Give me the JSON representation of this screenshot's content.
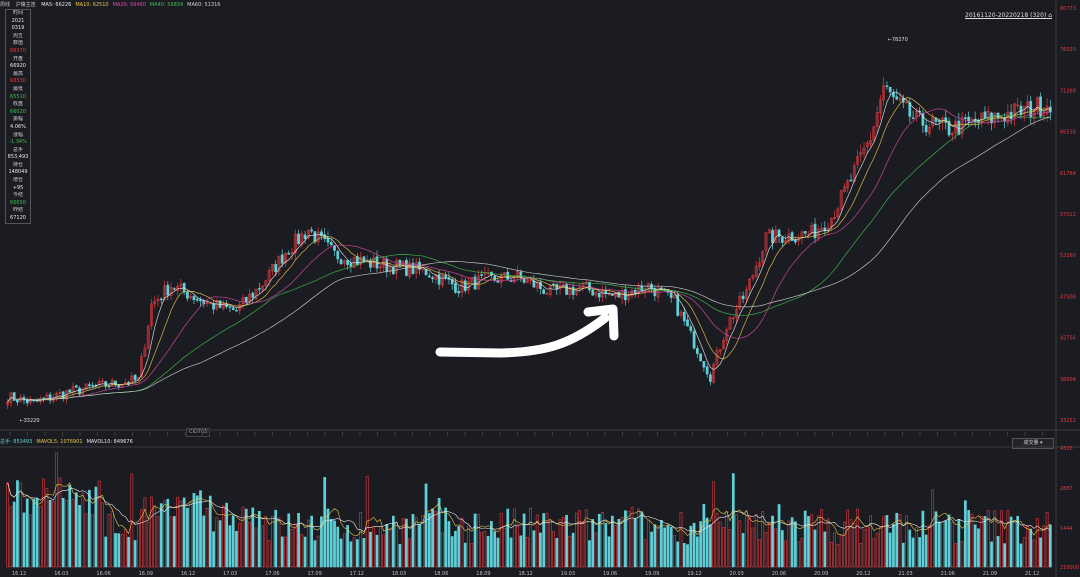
{
  "header": {
    "period": "周线",
    "symbol": "沪镍主连",
    "ma": [
      {
        "label": "MA5:",
        "value": "66226"
      },
      {
        "label": "MA10:",
        "value": "62510"
      },
      {
        "label": "MA20:",
        "value": "59480"
      },
      {
        "label": "MA40:",
        "value": "56834"
      },
      {
        "label": "MA60:",
        "value": "51316"
      }
    ],
    "range": "20161120-20220218 (320) ⌂"
  },
  "info_panel": [
    {
      "text": "时间",
      "tone": "lbl"
    },
    {
      "text": "2021",
      "tone": "white"
    },
    {
      "text": "0319",
      "tone": "white"
    },
    {
      "text": "周五",
      "tone": "lbl"
    },
    {
      "text": "数值",
      "tone": "lbl"
    },
    {
      "text": "66370",
      "tone": "red"
    },
    {
      "text": "开盘",
      "tone": "lbl"
    },
    {
      "text": "66920",
      "tone": "white"
    },
    {
      "text": "最高",
      "tone": "lbl"
    },
    {
      "text": "68330",
      "tone": "red"
    },
    {
      "text": "最低",
      "tone": "lbl"
    },
    {
      "text": "65510",
      "tone": "green"
    },
    {
      "text": "收盘",
      "tone": "lbl"
    },
    {
      "text": "66020",
      "tone": "green"
    },
    {
      "text": "振幅",
      "tone": "lbl"
    },
    {
      "text": "4.06%",
      "tone": "white"
    },
    {
      "text": "涨幅",
      "tone": "lbl"
    },
    {
      "text": "-1.34%",
      "tone": "green"
    },
    {
      "text": "总手",
      "tone": "lbl"
    },
    {
      "text": "853,493",
      "tone": "white"
    },
    {
      "text": "持仓",
      "tone": "lbl"
    },
    {
      "text": "148049",
      "tone": "white"
    },
    {
      "text": "增仓",
      "tone": "lbl"
    },
    {
      "text": "+95",
      "tone": "white"
    },
    {
      "text": "今结",
      "tone": "lbl"
    },
    {
      "text": "66650",
      "tone": "green"
    },
    {
      "text": "昨结",
      "tone": "lbl"
    },
    {
      "text": "67120",
      "tone": "white"
    }
  ],
  "cid_label": "CID703",
  "volume_header": [
    {
      "text": "总手: 853493",
      "cls": "vtot"
    },
    {
      "text": "MAVOL5: 1076901",
      "cls": "vma5"
    },
    {
      "text": "MAVOL10: 849676",
      "cls": "vma10"
    }
  ],
  "volume_type": "成交量 ▾",
  "chart_data": {
    "type": "candlestick",
    "title": "",
    "xlabel": "",
    "ylabel": "",
    "price_axis": {
      "ylim": [
        32720,
        80773
      ],
      "ticks": [
        "80773",
        "76020",
        "71268",
        "66516",
        "61764",
        "57012",
        "52260",
        "47508",
        "42756",
        "38004",
        "33252"
      ]
    },
    "volume_axis": {
      "ylim": [
        0,
        4800
      ],
      "ticks": [
        "4320",
        "2887",
        "1444",
        "210000"
      ]
    },
    "x_ticks": [
      "16.12",
      "16.03",
      "16.06",
      "16.09",
      "16.12",
      "17.03",
      "17.06",
      "17.09",
      "17.12",
      "18.03",
      "18.06",
      "18.09",
      "18.12",
      "19.03",
      "19.06",
      "19.09",
      "19.12",
      "20.03",
      "20.06",
      "20.09",
      "20.12",
      "21.03",
      "21.06",
      "21.09",
      "21.12"
    ],
    "annotations": [
      {
        "text": "78270",
        "type": "high"
      },
      {
        "text": "33220",
        "type": "low"
      }
    ],
    "anchors": [
      [
        0,
        35500
      ],
      [
        8,
        34800
      ],
      [
        18,
        36000
      ],
      [
        28,
        36800
      ],
      [
        40,
        37500
      ],
      [
        44,
        46500
      ],
      [
        50,
        48800
      ],
      [
        62,
        46500
      ],
      [
        70,
        45800
      ],
      [
        78,
        49000
      ],
      [
        85,
        52800
      ],
      [
        92,
        55500
      ],
      [
        100,
        52500
      ],
      [
        110,
        51500
      ],
      [
        120,
        51000
      ],
      [
        128,
        50500
      ],
      [
        138,
        48600
      ],
      [
        146,
        49500
      ],
      [
        156,
        49800
      ],
      [
        166,
        48000
      ],
      [
        176,
        48500
      ],
      [
        186,
        47500
      ],
      [
        196,
        48800
      ],
      [
        204,
        46800
      ],
      [
        210,
        42000
      ],
      [
        215,
        38000
      ],
      [
        220,
        44000
      ],
      [
        226,
        48000
      ],
      [
        232,
        54500
      ],
      [
        240,
        54800
      ],
      [
        246,
        55000
      ],
      [
        252,
        57000
      ],
      [
        258,
        61500
      ],
      [
        264,
        66500
      ],
      [
        268,
        72500
      ],
      [
        272,
        70500
      ],
      [
        278,
        68500
      ],
      [
        288,
        67500
      ],
      [
        298,
        68500
      ],
      [
        308,
        69500
      ],
      [
        312,
        69800
      ],
      [
        318,
        70500
      ],
      [
        320,
        71000
      ]
    ],
    "series_ma": [
      {
        "name": "MA5",
        "window": 5,
        "color": "#e8e8e8"
      },
      {
        "name": "MA10",
        "window": 10,
        "color": "#e8c84a"
      },
      {
        "name": "MA20",
        "window": 20,
        "color": "#d94aa6"
      },
      {
        "name": "MA40",
        "window": 40,
        "color": "#3fbf4f"
      },
      {
        "name": "MA60",
        "window": 60,
        "color": "#cfcfcf"
      }
    ],
    "bars": 320,
    "up_color": "#e0393e",
    "down_color": "#5fd0d8"
  }
}
